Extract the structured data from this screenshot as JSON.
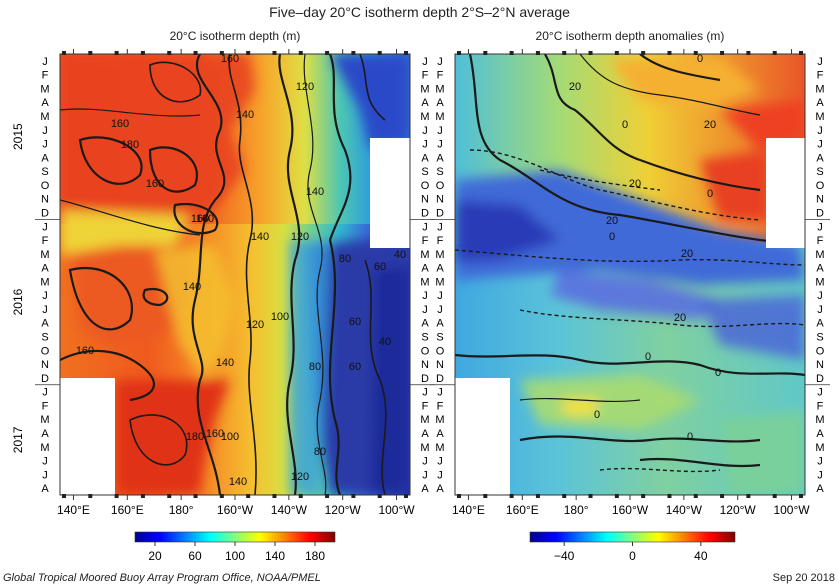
{
  "figure": {
    "title": "Five–day 20°C isotherm depth   2°S–2°N average",
    "footer": "Global Tropical Moored Buoy Array Program Office, NOAA/PMEL",
    "date": "Sep 20 2018"
  },
  "time_axis": {
    "months": [
      "J",
      "F",
      "M",
      "A",
      "M",
      "J",
      "J",
      "A",
      "S",
      "O",
      "N",
      "D",
      "J",
      "F",
      "M",
      "A",
      "M",
      "J",
      "J",
      "A",
      "S",
      "O",
      "N",
      "D",
      "J",
      "F",
      "M",
      "A",
      "M",
      "J",
      "J",
      "A"
    ],
    "years": [
      "2015",
      "2016",
      "2017"
    ]
  },
  "chart_data": [
    {
      "type": "heatmap",
      "title": "20°C isotherm depth (m)",
      "x_ticks": [
        "140°E",
        "160°E",
        "180°",
        "160°W",
        "140°W",
        "120°W",
        "100°W"
      ],
      "x_range_lon": [
        135,
        265
      ],
      "colorbar": {
        "ticks": [
          "20",
          "60",
          "100",
          "140",
          "180"
        ],
        "range": [
          0,
          200
        ],
        "colormap": "jet"
      },
      "contour_labels": [
        "160",
        "160",
        "140",
        "120",
        "160",
        "180",
        "160",
        "140",
        "160",
        "140",
        "120",
        "80",
        "60",
        "40",
        "140",
        "120",
        "100",
        "60",
        "40",
        "160",
        "140",
        "80",
        "60",
        "180",
        "160",
        "100",
        "80",
        "140",
        "120"
      ],
      "cross_section_m": {
        "lon": [
          140,
          150,
          160,
          170,
          180,
          190,
          200,
          210,
          220,
          230,
          240,
          250,
          260
        ],
        "rows": [
          {
            "month": "Jan 2015",
            "depth": [
              170,
              175,
              178,
              180,
              175,
              165,
              155,
              140,
              125,
              100,
              80,
              60,
              50
            ]
          },
          {
            "month": "Jul 2015",
            "depth": [
              160,
              165,
              170,
              175,
              178,
              172,
              160,
              150,
              135,
              115,
              95,
              80,
              70
            ]
          },
          {
            "month": "Jan 2016",
            "depth": [
              140,
              150,
              160,
              165,
              160,
              150,
              140,
              125,
              110,
              90,
              75,
              65,
              55
            ]
          },
          {
            "month": "Jul 2016",
            "depth": [
              165,
              170,
              172,
              160,
              150,
              140,
              125,
              110,
              90,
              70,
              50,
              40,
              35
            ]
          },
          {
            "month": "Jan 2017",
            "depth": [
              null,
              185,
              185,
              180,
              165,
              150,
              135,
              115,
              95,
              75,
              55,
              40,
              35
            ]
          },
          {
            "month": "Jul 2017",
            "depth": [
              null,
              180,
              180,
              170,
              160,
              145,
              130,
              110,
              90,
              70,
              55,
              40,
              35
            ]
          }
        ]
      }
    },
    {
      "type": "heatmap",
      "title": "20°C isotherm depth anomalies (m)",
      "x_ticks": [
        "140°E",
        "160°E",
        "180°",
        "160°W",
        "140°W",
        "120°W",
        "100°W"
      ],
      "x_range_lon": [
        135,
        265
      ],
      "colorbar": {
        "ticks": [
          "−40",
          "0",
          "40"
        ],
        "range": [
          -60,
          60
        ],
        "colormap": "jet"
      },
      "contour_labels": [
        "0",
        "20",
        "0",
        "20",
        "0",
        "20",
        "0",
        "20",
        "20",
        "20",
        "0",
        "0",
        "0",
        "0"
      ],
      "cross_section_m": {
        "lon": [
          140,
          150,
          160,
          170,
          180,
          190,
          200,
          210,
          220,
          230,
          240,
          250,
          260
        ],
        "rows": [
          {
            "month": "Jan 2015",
            "anomaly": [
              -5,
              -8,
              -10,
              -5,
              0,
              10,
              20,
              25,
              30,
              30,
              25,
              20,
              10
            ]
          },
          {
            "month": "Jul 2015",
            "anomaly": [
              -15,
              -20,
              -15,
              -10,
              -5,
              0,
              10,
              20,
              30,
              35,
              40,
              35,
              25
            ]
          },
          {
            "month": "Jan 2016",
            "anomaly": [
              -35,
              -40,
              -40,
              -35,
              -25,
              -20,
              -15,
              -10,
              -5,
              5,
              10,
              5,
              0
            ]
          },
          {
            "month": "Jul 2016",
            "anomaly": [
              -10,
              -15,
              -20,
              -25,
              -30,
              -35,
              -30,
              -25,
              -20,
              -20,
              -15,
              -15,
              -10
            ]
          },
          {
            "month": "Jan 2017",
            "anomaly": [
              null,
              -5,
              -5,
              -10,
              -10,
              -10,
              -15,
              -10,
              -10,
              -5,
              -5,
              0,
              0
            ]
          },
          {
            "month": "Jul 2017",
            "anomaly": [
              null,
              -10,
              -10,
              -5,
              -5,
              -5,
              -10,
              -10,
              -10,
              -5,
              0,
              0,
              5
            ]
          }
        ]
      }
    }
  ]
}
